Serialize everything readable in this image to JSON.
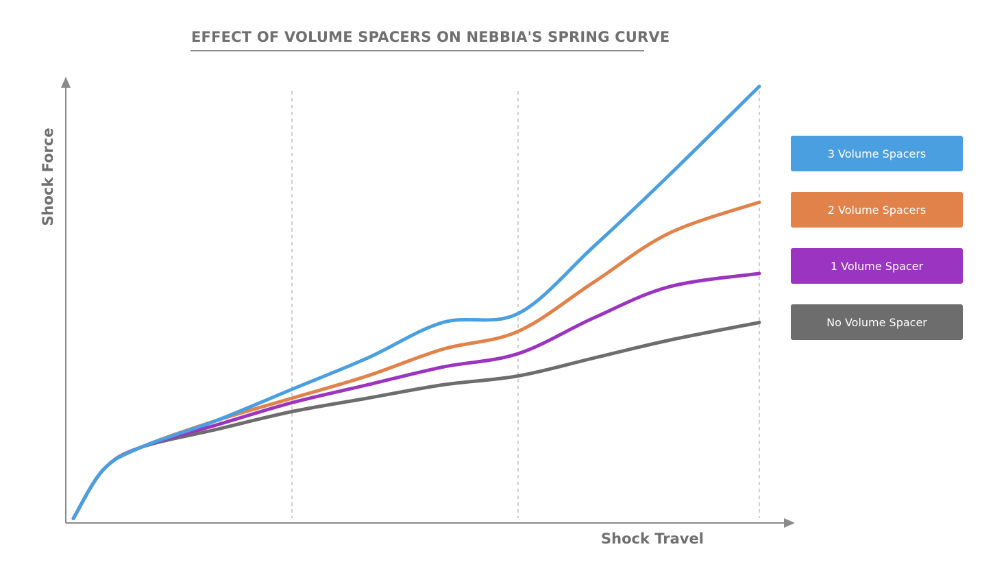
{
  "chart_data": {
    "type": "line",
    "title": "EFFECT OF VOLUME SPACERS ON NEBBIA'S SPRING CURVE",
    "xlabel": "Shock Travel",
    "ylabel": "Shock Force",
    "xlim": [
      0,
      100
    ],
    "ylim": [
      0,
      100
    ],
    "grid": "vertical dashed at x=30, 60, 92",
    "legend_placement": "right",
    "x": [
      1,
      5,
      10,
      20,
      30,
      40,
      50,
      60,
      70,
      80,
      92
    ],
    "series": [
      {
        "name": "3 Volume Spacers",
        "color": "#4a9fe0",
        "values": [
          1,
          12,
          17,
          23,
          30,
          37,
          45,
          47,
          62,
          78,
          98
        ]
      },
      {
        "name": "2 Volume Spacers",
        "color": "#e0824a",
        "values": [
          1,
          12,
          17,
          23,
          28,
          33,
          39,
          43,
          54,
          65,
          72
        ]
      },
      {
        "name": "1 Volume Spacer",
        "color": "#9b34c0",
        "values": [
          1,
          12,
          17,
          22,
          27,
          31,
          35,
          38,
          46,
          53,
          56
        ]
      },
      {
        "name": "No Volume Spacer",
        "color": "#6d6d6d",
        "values": [
          1,
          12,
          17,
          21,
          25,
          28,
          31,
          33,
          37,
          41,
          45
        ]
      }
    ]
  }
}
